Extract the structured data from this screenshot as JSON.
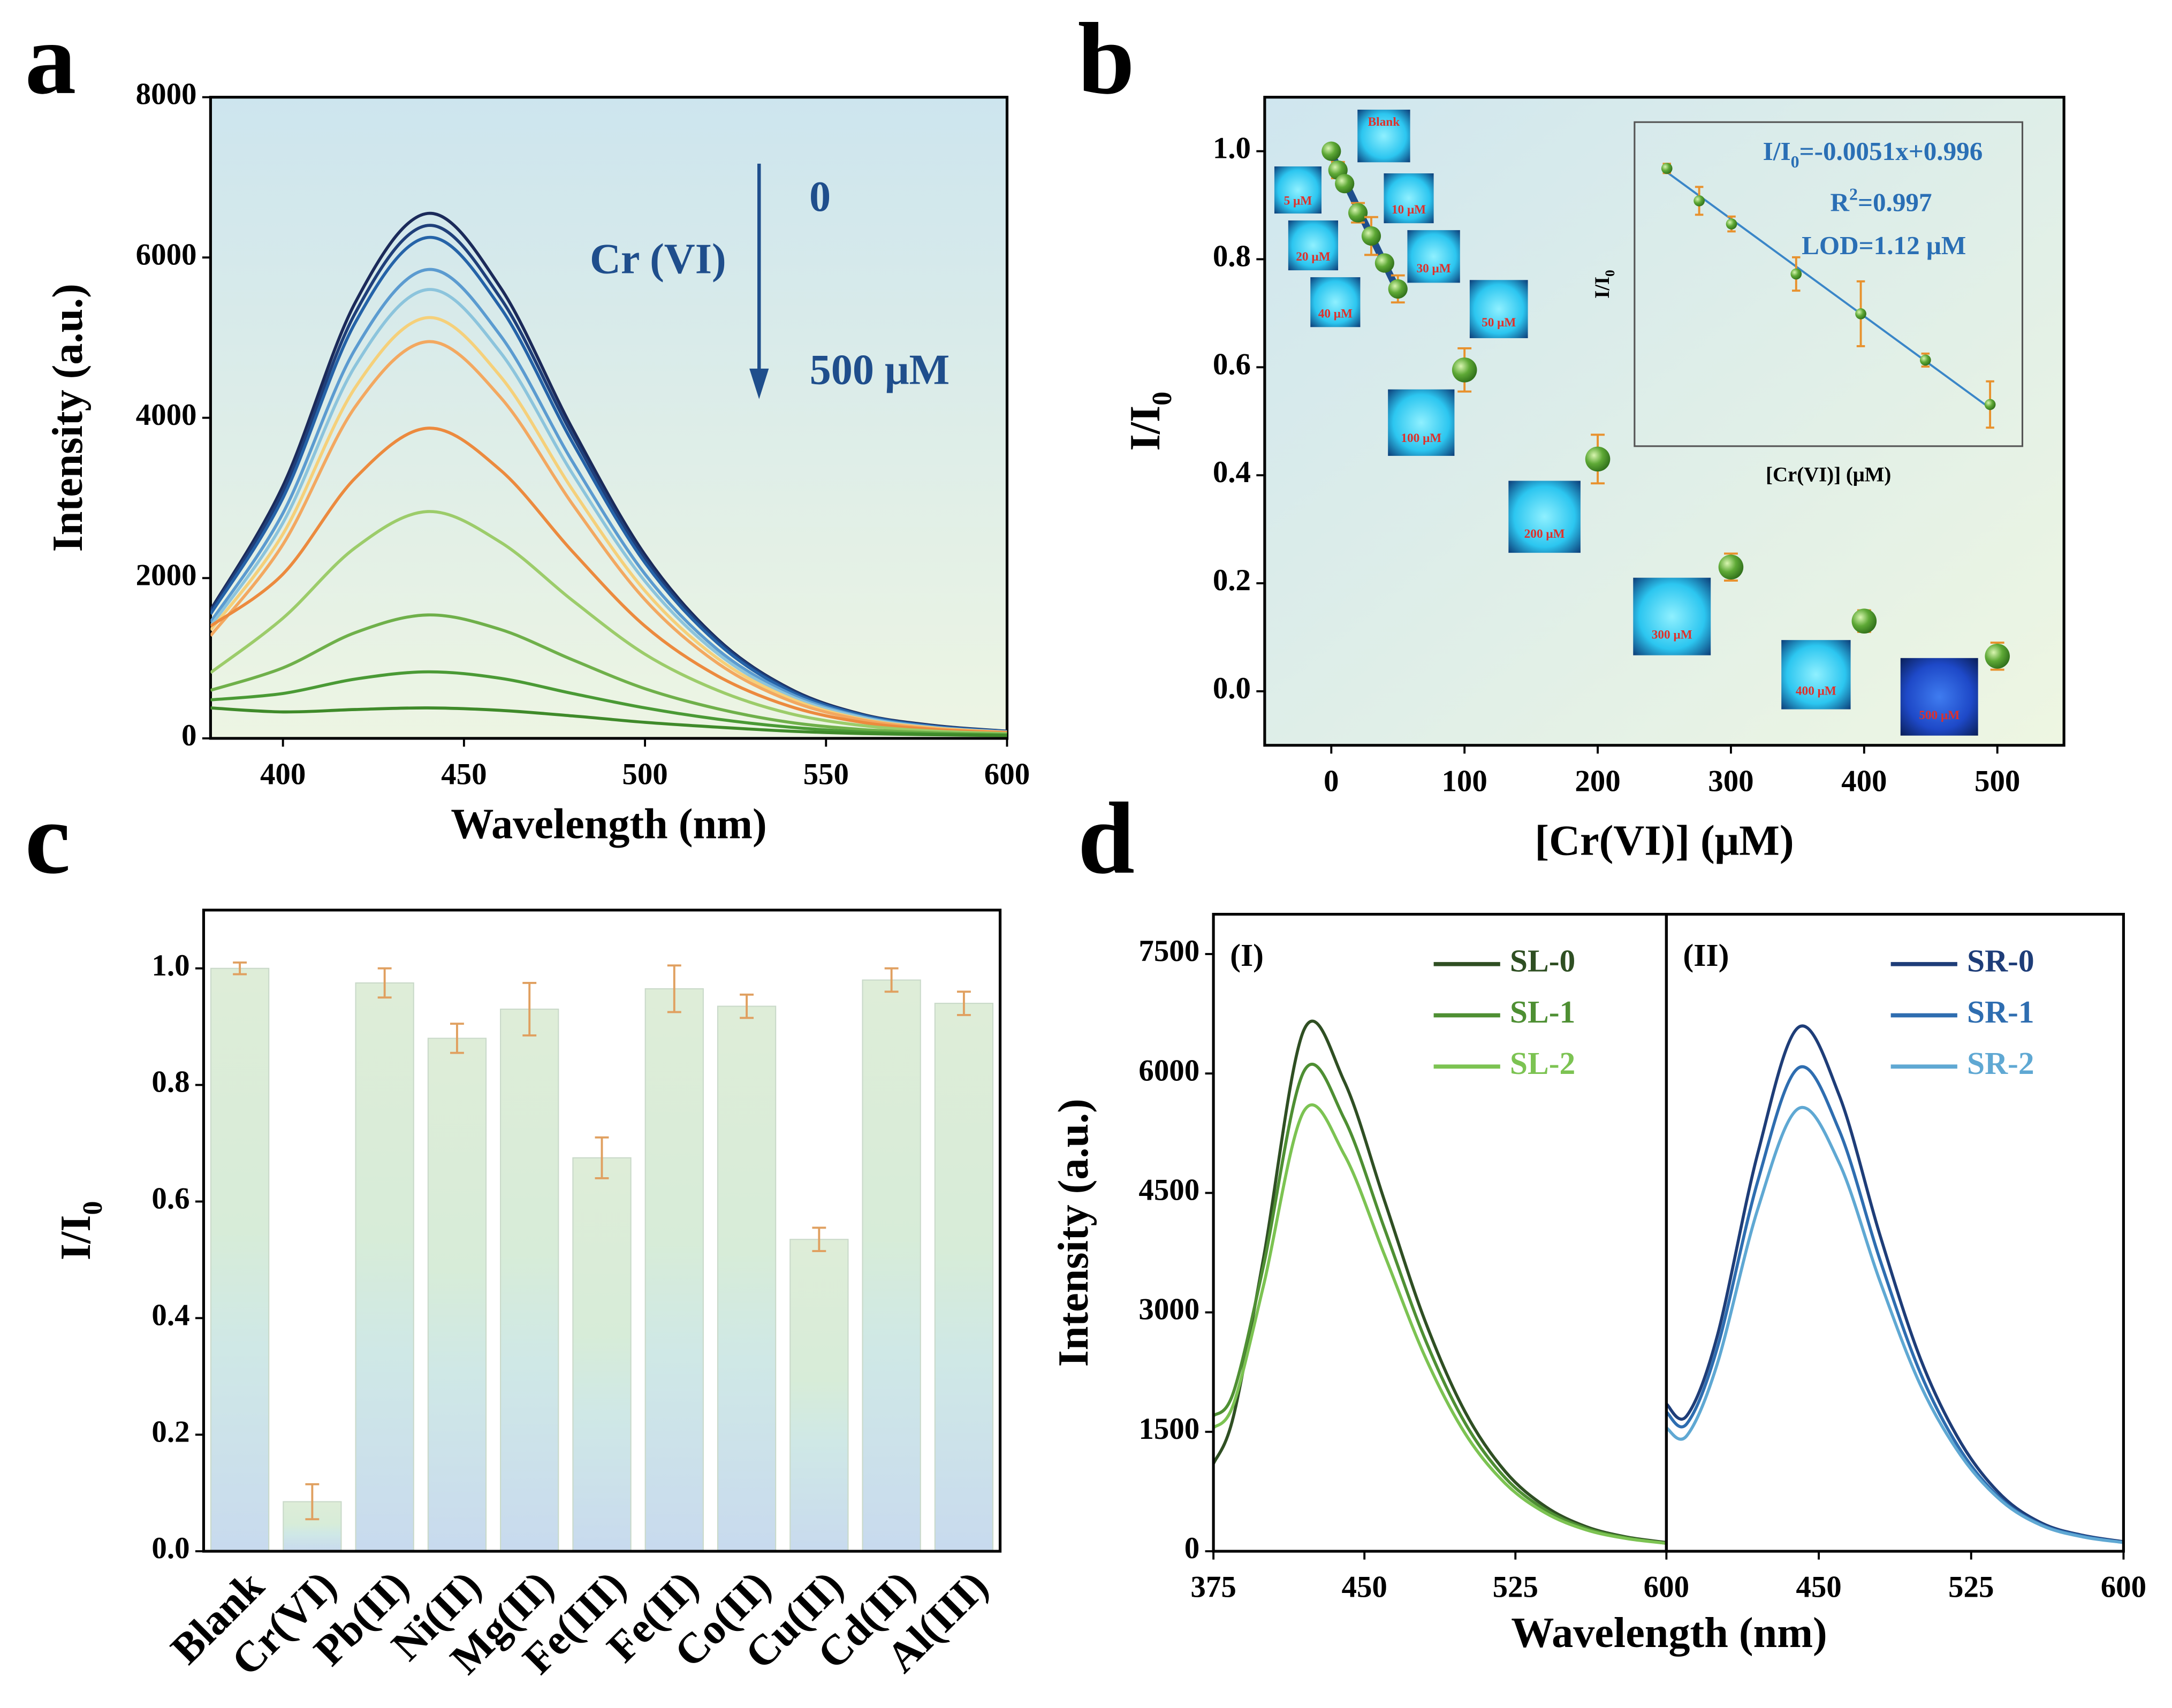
{
  "chart_data": [
    {
      "type": "line",
      "label": "a",
      "xlabel": "Wavelength (nm)",
      "ylabel": "Intensity (a.u.)",
      "xlim": [
        380,
        600
      ],
      "xticks": [
        400,
        450,
        500,
        550,
        600
      ],
      "ylim": [
        0,
        8000
      ],
      "yticks": [
        0,
        2000,
        4000,
        6000,
        8000
      ],
      "x": [
        380,
        400,
        420,
        440,
        460,
        480,
        500,
        520,
        540,
        560,
        580,
        600
      ],
      "series": [
        {
          "color": "#1b2a5a",
          "values": [
            1600,
            3150,
            5440,
            6550,
            5630,
            3860,
            2290,
            1240,
            620,
            300,
            160,
            90
          ]
        },
        {
          "color": "#1f3f7a",
          "values": [
            1580,
            3080,
            5310,
            6400,
            5500,
            3780,
            2240,
            1220,
            610,
            290,
            150,
            85
          ]
        },
        {
          "color": "#2563a8",
          "values": [
            1550,
            3000,
            5190,
            6250,
            5380,
            3690,
            2190,
            1190,
            590,
            290,
            150,
            85
          ]
        },
        {
          "color": "#5b9bd0",
          "values": [
            1450,
            2810,
            4860,
            5850,
            5030,
            3450,
            2050,
            1110,
            560,
            270,
            140,
            80
          ]
        },
        {
          "color": "#8cc4dc",
          "values": [
            1400,
            2690,
            4650,
            5600,
            4820,
            3300,
            1960,
            1060,
            530,
            260,
            130,
            80
          ]
        },
        {
          "color": "#f5d07a",
          "values": [
            1350,
            2550,
            4380,
            5250,
            4520,
            3100,
            1840,
            1000,
            500,
            240,
            130,
            75
          ]
        },
        {
          "color": "#f3a860",
          "values": [
            1280,
            2420,
            4140,
            4950,
            4260,
            2920,
            1730,
            940,
            470,
            230,
            120,
            75
          ]
        },
        {
          "color": "#ec8a3e",
          "values": [
            1400,
            2050,
            3250,
            3870,
            3350,
            2330,
            1400,
            780,
            400,
            200,
            110,
            70
          ]
        },
        {
          "color": "#9ccc6a",
          "values": [
            820,
            1500,
            2380,
            2830,
            2450,
            1720,
            1050,
            600,
            310,
            160,
            90,
            60
          ]
        },
        {
          "color": "#6fb04a",
          "values": [
            600,
            880,
            1320,
            1540,
            1360,
            980,
            620,
            370,
            200,
            110,
            70,
            50
          ]
        },
        {
          "color": "#4a9a35",
          "values": [
            480,
            560,
            740,
            830,
            750,
            560,
            380,
            240,
            140,
            80,
            55,
            40
          ]
        },
        {
          "color": "#3f8a2a",
          "values": [
            380,
            330,
            360,
            380,
            350,
            280,
            200,
            140,
            90,
            60,
            45,
            35
          ]
        }
      ],
      "annotations": {
        "start": "0",
        "analyte": "Cr (VI)",
        "end": "500 μM"
      }
    },
    {
      "type": "scatter",
      "label": "b",
      "xlabel": "[Cr(VI)] (μM)",
      "ylabel": {
        "text": "I/I",
        "sub": "0"
      },
      "xlim": [
        -50,
        550
      ],
      "xticks": [
        0,
        100,
        200,
        300,
        400,
        500
      ],
      "ylim": [
        -0.1,
        1.1
      ],
      "yticks": [
        {
          "value": 0,
          "label": "0.0"
        },
        0.2,
        0.4,
        0.6,
        0.8,
        {
          "value": 1,
          "label": "1.0"
        }
      ],
      "x": [
        0,
        5,
        10,
        20,
        30,
        40,
        50,
        100,
        200,
        300,
        400,
        500
      ],
      "values": [
        1.0,
        0.965,
        0.94,
        0.886,
        0.843,
        0.793,
        0.745,
        0.595,
        0.43,
        0.23,
        0.13,
        0.065
      ],
      "errors": [
        0.005,
        0.015,
        0.008,
        0.018,
        0.035,
        0.007,
        0.025,
        0.04,
        0.045,
        0.025,
        0.02,
        0.025
      ],
      "error_color": "#e8912d",
      "fit": {
        "x": [
          0,
          50
        ],
        "values": [
          0.996,
          0.741
        ],
        "color": "#1f4e8c"
      },
      "photo_labels": [
        "Blank",
        "5 μM",
        "10 μM",
        "20 μM",
        "30 μM",
        "40 μM",
        "50 μM",
        "100 μM",
        "200 μM",
        "300 μM",
        "400 μM",
        "500 μM"
      ],
      "inset": {
        "xlabel": "[Cr(VI)] (μM)",
        "ylabel": {
          "text": "I/I",
          "sub": "0"
        },
        "xlim": [
          -5,
          55
        ],
        "ylim": [
          0.7,
          1.05
        ],
        "x": [
          0,
          5,
          10,
          20,
          30,
          40,
          50
        ],
        "values": [
          1.0,
          0.965,
          0.94,
          0.886,
          0.843,
          0.793,
          0.745
        ],
        "errors": [
          0.005,
          0.015,
          0.008,
          0.018,
          0.035,
          0.007,
          0.025
        ],
        "fit": {
          "x": [
            0,
            50
          ],
          "values": [
            0.996,
            0.741
          ],
          "color": "#3a86c8"
        },
        "equation": {
          "text": "I/I",
          "sub": "0",
          "tail": "=-0.0051x+0.996"
        },
        "r_squared": {
          "text": "R",
          "sup": "2",
          "tail": "=0.997"
        },
        "lod": "LOD=1.12 μM"
      }
    },
    {
      "type": "bar",
      "label": "c",
      "ylabel": {
        "text": "I/I",
        "sub": "0"
      },
      "categories": [
        "Blank",
        "Cr(VI)",
        "Pb(II)",
        "Ni(II)",
        "Mg(II)",
        "Fe(III)",
        "Fe(II)",
        "Co(II)",
        "Cu(II)",
        "Cd(II)",
        "Al(III)"
      ],
      "values": [
        1.0,
        0.085,
        0.975,
        0.88,
        0.93,
        0.675,
        0.965,
        0.935,
        0.535,
        0.98,
        0.94
      ],
      "errors": [
        0.01,
        0.03,
        0.025,
        0.025,
        0.045,
        0.035,
        0.04,
        0.02,
        0.02,
        0.02,
        0.02
      ],
      "error_color": "#e0a060",
      "ylim": [
        0,
        1.1
      ],
      "yticks": [
        {
          "value": 0,
          "label": "0.0"
        },
        0.2,
        0.4,
        0.6,
        0.8,
        {
          "value": 1,
          "label": "1.0"
        }
      ]
    },
    {
      "type": "line",
      "label": "d",
      "xlabel": "Wavelength (nm)",
      "ylabel": "Intensity (a.u.)",
      "ylim": [
        0,
        8000
      ],
      "yticks": [
        0,
        1500,
        3000,
        4500,
        6000,
        7500
      ],
      "panels": [
        {
          "label": "(I)",
          "xlim": [
            375,
            600
          ],
          "xticks": [
            375,
            450,
            525,
            600
          ],
          "x": [
            375,
            385,
            400,
            420,
            440,
            460,
            480,
            500,
            520,
            540,
            560,
            580,
            600
          ],
          "series": [
            {
              "name": "SL-0",
              "color": "#2f4f23",
              "values": [
                1100,
                1700,
                3700,
                6550,
                5900,
                4400,
                2900,
                1750,
                1000,
                560,
                310,
                180,
                110
              ]
            },
            {
              "name": "SL-1",
              "color": "#4e8f33",
              "values": [
                1700,
                2000,
                3600,
                6030,
                5430,
                4050,
                2670,
                1610,
                920,
                520,
                290,
                170,
                100
              ]
            },
            {
              "name": "SL-2",
              "color": "#7cc352",
              "values": [
                1550,
                1850,
                3350,
                5530,
                4980,
                3720,
                2450,
                1480,
                850,
                480,
                270,
                160,
                100
              ]
            }
          ]
        },
        {
          "label": "(II)",
          "xlim": [
            375,
            600
          ],
          "xticks": [
            450,
            525,
            600
          ],
          "x": [
            375,
            385,
            400,
            420,
            440,
            460,
            480,
            500,
            520,
            540,
            560,
            580,
            600
          ],
          "series": [
            {
              "name": "SR-0",
              "color": "#1e3d78",
              "values": [
                1850,
                1700,
                2700,
                5000,
                6580,
                5730,
                3980,
                2420,
                1360,
                700,
                350,
                200,
                120
              ]
            },
            {
              "name": "SR-1",
              "color": "#2e6db0",
              "values": [
                1750,
                1600,
                2550,
                4650,
                6070,
                5290,
                3670,
                2240,
                1260,
                650,
                330,
                190,
                110
              ]
            },
            {
              "name": "SR-2",
              "color": "#5fa8d3",
              "values": [
                1550,
                1450,
                2350,
                4300,
                5560,
                4880,
                3400,
                2090,
                1200,
                630,
                320,
                180,
                110
              ]
            }
          ]
        }
      ]
    }
  ]
}
